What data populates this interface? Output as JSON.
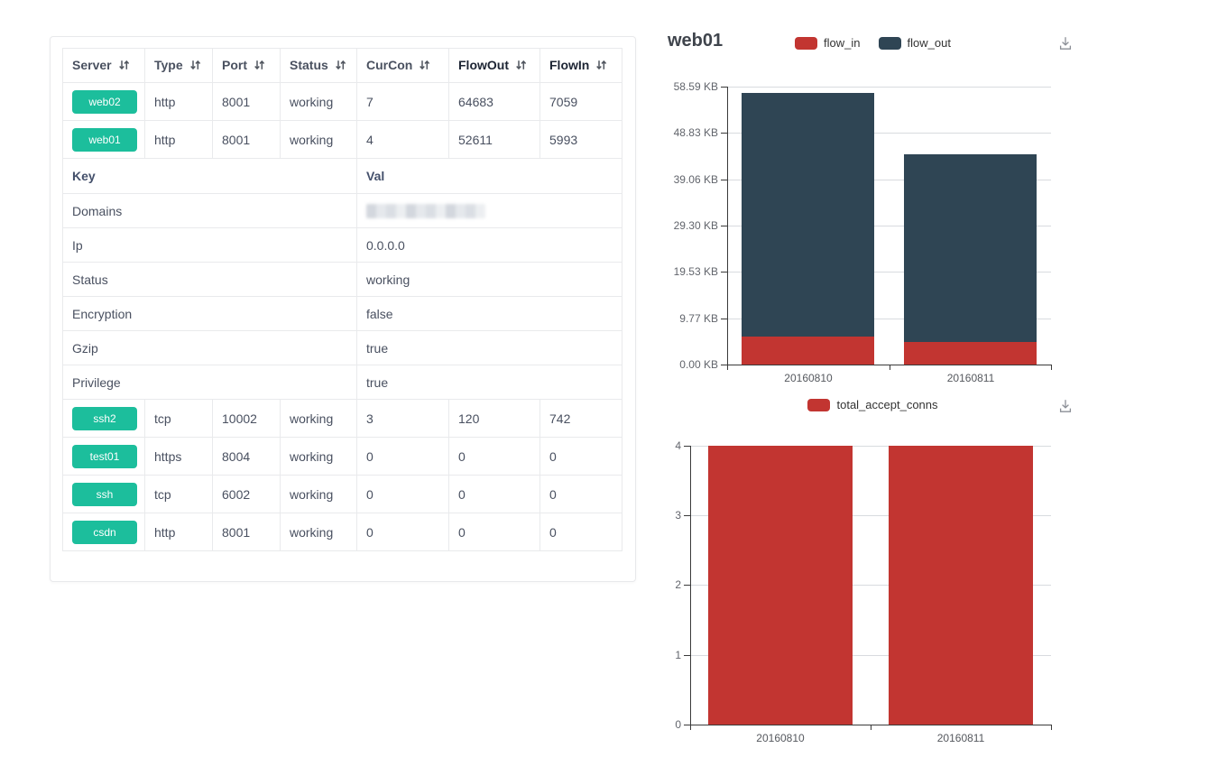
{
  "window": {
    "background": "#ffffff"
  },
  "icons": {
    "header_sort": "sort-arrows-icon (down+up)",
    "chart_download": "download-tray-icon"
  },
  "server_table": {
    "badge_color": "#1cbe9c",
    "columns": [
      {
        "label": "Server",
        "sortable": true,
        "emphasis": false
      },
      {
        "label": "Type",
        "sortable": true,
        "emphasis": false
      },
      {
        "label": "Port",
        "sortable": true,
        "emphasis": false
      },
      {
        "label": "Status",
        "sortable": true,
        "emphasis": false
      },
      {
        "label": "CurCon",
        "sortable": true,
        "emphasis": false
      },
      {
        "label": "FlowOut",
        "sortable": true,
        "emphasis": true
      },
      {
        "label": "FlowIn",
        "sortable": true,
        "emphasis": true
      }
    ],
    "rows_top": [
      {
        "server": "web02",
        "type": "http",
        "port": "8001",
        "status": "working",
        "curcon": "7",
        "flowout": "64683",
        "flowin": "7059"
      },
      {
        "server": "web01",
        "type": "http",
        "port": "8001",
        "status": "working",
        "curcon": "4",
        "flowout": "52611",
        "flowin": "5993"
      }
    ],
    "detail": {
      "key_header": "Key",
      "val_header": "Val",
      "rows": [
        {
          "key": "Domains",
          "val": "",
          "redacted": true
        },
        {
          "key": "Ip",
          "val": "0.0.0.0",
          "redacted": false
        },
        {
          "key": "Status",
          "val": "working",
          "redacted": false
        },
        {
          "key": "Encryption",
          "val": "false",
          "redacted": false
        },
        {
          "key": "Gzip",
          "val": "true",
          "redacted": false
        },
        {
          "key": "Privilege",
          "val": "true",
          "redacted": false
        }
      ]
    },
    "rows_bottom": [
      {
        "server": "ssh2",
        "type": "tcp",
        "port": "10002",
        "status": "working",
        "curcon": "3",
        "flowout": "120",
        "flowin": "742"
      },
      {
        "server": "test01",
        "type": "https",
        "port": "8004",
        "status": "working",
        "curcon": "0",
        "flowout": "0",
        "flowin": "0"
      },
      {
        "server": "ssh",
        "type": "tcp",
        "port": "6002",
        "status": "working",
        "curcon": "0",
        "flowout": "0",
        "flowin": "0"
      },
      {
        "server": "csdn",
        "type": "http",
        "port": "8001",
        "status": "working",
        "curcon": "0",
        "flowout": "0",
        "flowin": "0"
      }
    ]
  },
  "chart_data": [
    {
      "type": "bar",
      "stacked": true,
      "title": "web01",
      "categories": [
        "20160810",
        "20160811"
      ],
      "series": [
        {
          "name": "flow_in",
          "color": "#c23531",
          "values": [
            5993,
            4870
          ]
        },
        {
          "name": "flow_out",
          "color": "#2f4554",
          "values": [
            52611,
            40500
          ]
        }
      ],
      "unit": "bytes",
      "axis_unit": "KB",
      "ylim": [
        0,
        60000
      ],
      "y_ticks": [
        "0.00 KB",
        "9.77 KB",
        "19.53 KB",
        "29.30 KB",
        "39.06 KB",
        "48.83 KB",
        "58.59 KB"
      ],
      "legend_position": "top-center",
      "grid": true,
      "has_download_button": true
    },
    {
      "type": "bar",
      "stacked": false,
      "title": "",
      "categories": [
        "20160810",
        "20160811"
      ],
      "series": [
        {
          "name": "total_accept_conns",
          "color": "#c23531",
          "values": [
            4,
            4
          ]
        }
      ],
      "ylim": [
        0,
        4
      ],
      "y_ticks": [
        "0",
        "1",
        "2",
        "3",
        "4"
      ],
      "legend_position": "top-center",
      "grid": true,
      "has_download_button": true
    }
  ]
}
